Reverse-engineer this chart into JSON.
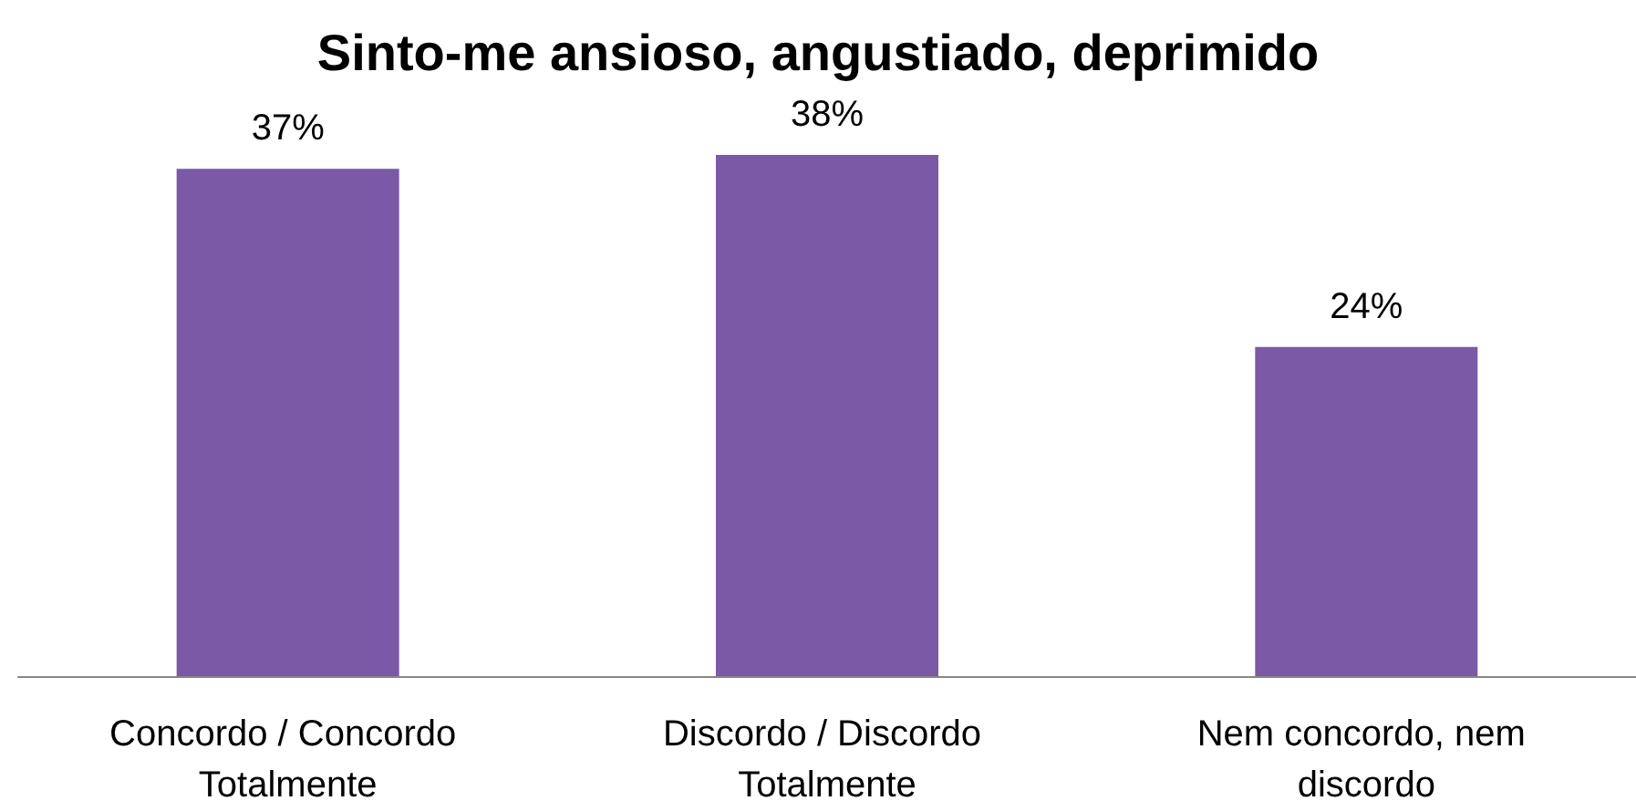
{
  "chart_data": {
    "type": "bar",
    "title": "Sinto-me ansioso, angustiado, deprimido",
    "categories": [
      "Concordo / Concordo Totalmente",
      "Discordo / Discordo Totalmente",
      "Nem concordo, nem discordo"
    ],
    "values": [
      37,
      38,
      24
    ],
    "value_labels": [
      "37%",
      "38%",
      "24%"
    ],
    "color": "#7b59a7"
  }
}
